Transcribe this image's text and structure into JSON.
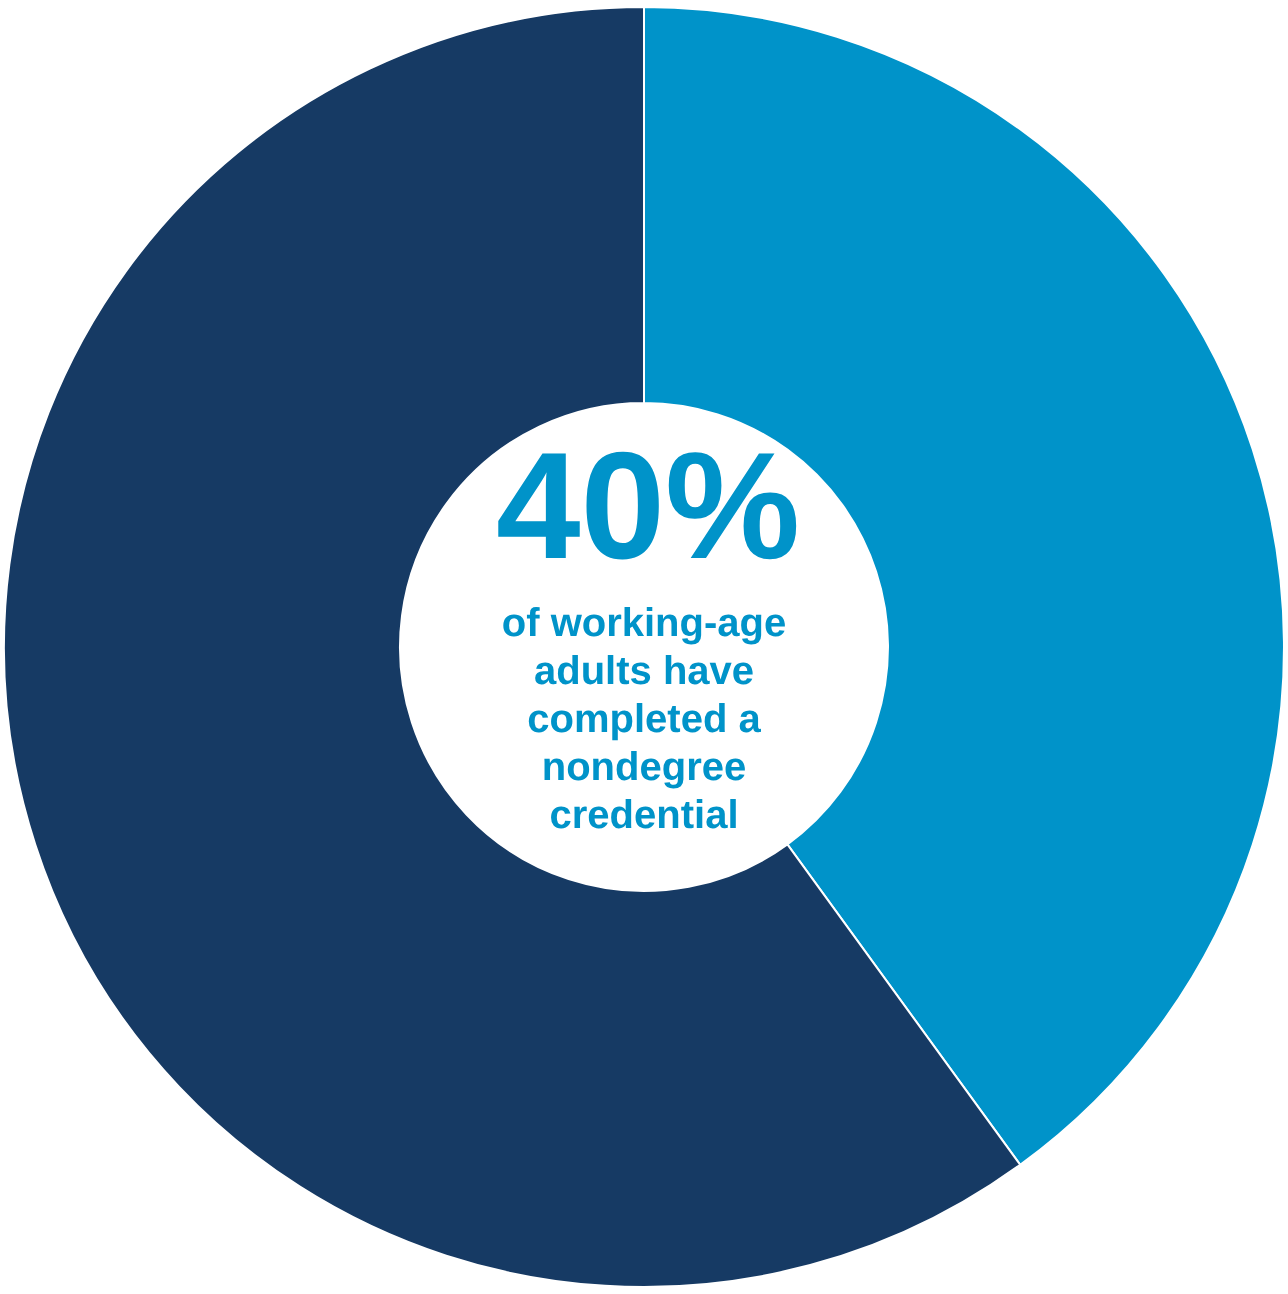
{
  "chart_data": {
    "type": "donut",
    "categories": [
      null,
      null
    ],
    "values": [
      40,
      60
    ],
    "colors": [
      "#0093c9",
      "#163a64"
    ],
    "annotations": [
      "40%",
      "of working-age adults have completed a nondegree credential"
    ]
  }
}
